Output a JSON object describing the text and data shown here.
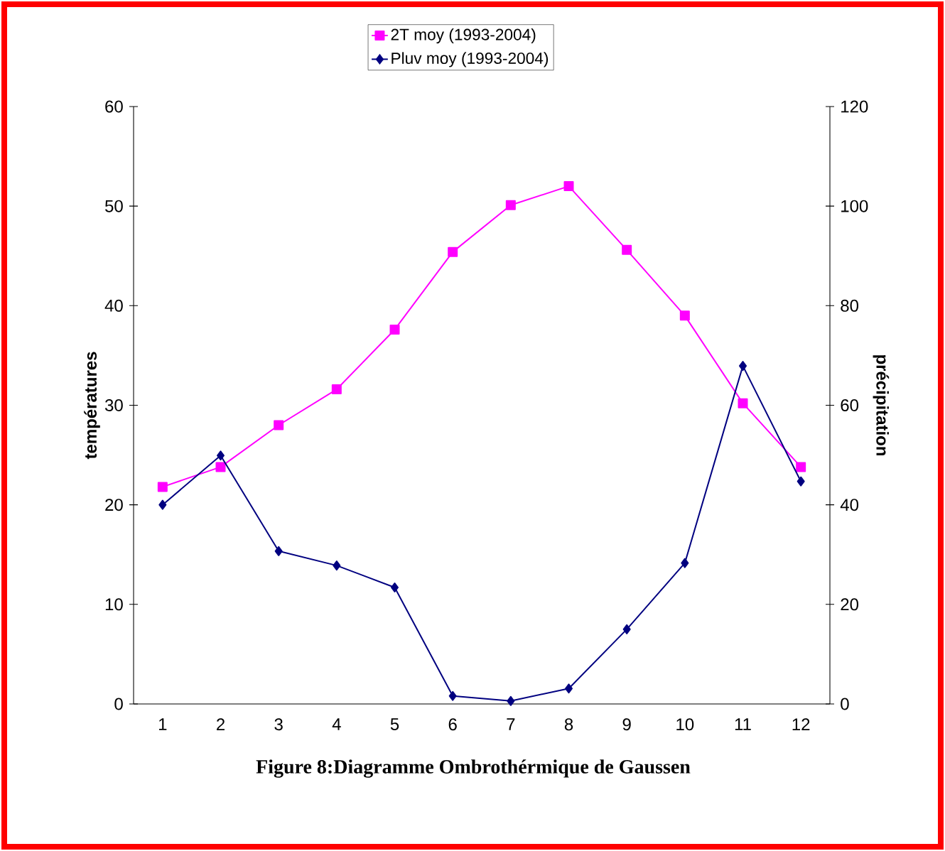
{
  "chart_data": {
    "type": "line",
    "title": "Figure 8:Diagramme Ombrothérmique de Gaussen",
    "categories": [
      "1",
      "2",
      "3",
      "4",
      "5",
      "6",
      "7",
      "8",
      "9",
      "10",
      "11",
      "12"
    ],
    "series": [
      {
        "name": "2T moy (1993-2004)",
        "color": "#ff00ff",
        "marker": "square",
        "values": [
          21.8,
          23.8,
          28.0,
          31.6,
          37.6,
          45.4,
          50.1,
          52.0,
          45.6,
          39.0,
          30.2,
          23.8
        ]
      },
      {
        "name": "Pluv moy (1993-2004)",
        "color": "#000080",
        "marker": "diamond",
        "axis": "y2",
        "values": [
          40.0,
          49.9,
          30.7,
          27.8,
          23.4,
          1.6,
          0.6,
          3.1,
          15.0,
          28.3,
          67.9,
          44.7
        ]
      }
    ],
    "ylabel": "températures",
    "y2label": "précipitation",
    "ylim": [
      0,
      60
    ],
    "yticks": [
      0,
      10,
      20,
      30,
      40,
      50,
      60
    ],
    "y2lim": [
      0,
      120
    ],
    "y2ticks": [
      0,
      20,
      40,
      60,
      80,
      100,
      120
    ],
    "legend": "top"
  }
}
